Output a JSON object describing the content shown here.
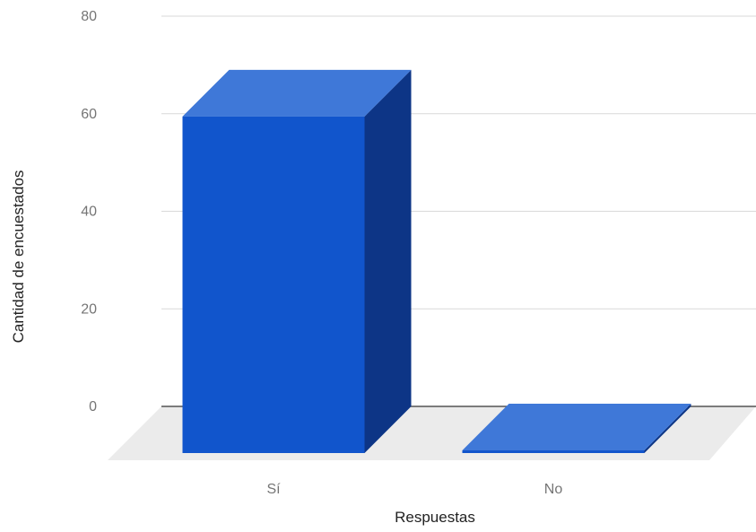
{
  "chart_data": {
    "type": "bar",
    "style": "3d",
    "categories": [
      "Sí",
      "No"
    ],
    "values": [
      69,
      0
    ],
    "xlabel": "Respuestas",
    "ylabel": "Cantidad de encuestados",
    "ylim": [
      0,
      80
    ],
    "yticks": [
      0,
      20,
      40,
      60,
      80
    ],
    "grid": true,
    "legend": "none",
    "colors": {
      "bar_front": "#1155cc",
      "bar_top": "#3f78d8",
      "bar_side": "#0d3586",
      "floor": "#ebebeb",
      "gridline": "#d9d9d9",
      "baseline": "#333333"
    }
  }
}
